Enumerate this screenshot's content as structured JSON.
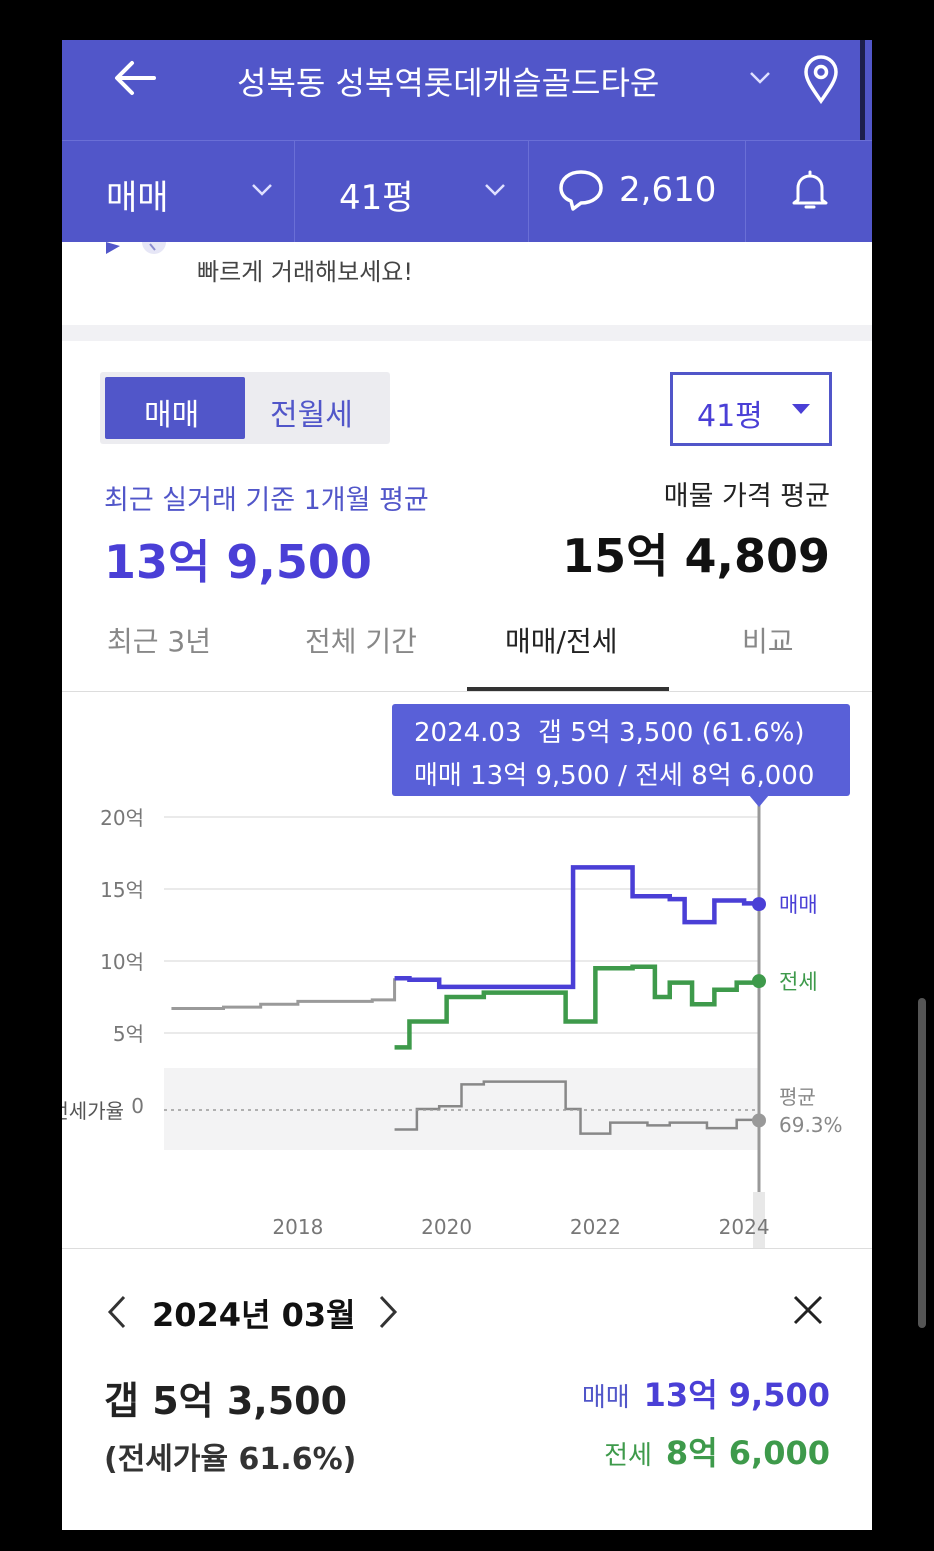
{
  "header": {
    "title": "성복동 성복역롯데캐슬골드타운",
    "trade_type": "매매",
    "area": "41평",
    "comment_count": "2,610"
  },
  "banner": {
    "text": "빠르게 거래해보세요!"
  },
  "toggle": {
    "sale": "매매",
    "lease": "전월세",
    "area": "41평"
  },
  "summary": {
    "recent_label": "최근 실거래 기준 1개월 평균",
    "recent_value": "13억 9,500",
    "listing_label": "매물 가격 평균",
    "listing_value": "15억 4,809"
  },
  "tabs": [
    "최근 3년",
    "전체 기간",
    "매매/전세",
    "비교"
  ],
  "tooltip": {
    "line1": "2024.03  갭 5억 3,500 (61.6%)",
    "line2": "매매 13억 9,500 / 전세 8억 6,000"
  },
  "chart_data": {
    "type": "line",
    "y_ticks": [
      "20억",
      "15억",
      "10억",
      "5억",
      "0"
    ],
    "x_ticks": [
      "2018",
      "2020",
      "2022",
      "2024"
    ],
    "ylim": [
      0,
      20
    ],
    "ratio_label": "전세가율",
    "avg_label": "평균",
    "avg_value": "69.3%",
    "series": [
      {
        "name": "매매",
        "color": "#4a3fd6",
        "x": [
          2016.3,
          2017.0,
          2017.5,
          2018.0,
          2018.5,
          2019.0,
          2019.3,
          2019.5,
          2019.9,
          2020.5,
          2021.0,
          2021.4,
          2021.7,
          2022.2,
          2022.5,
          2023.0,
          2023.2,
          2023.6,
          2024.0,
          2024.2
        ],
        "y": [
          6.7,
          6.8,
          7.0,
          7.2,
          7.2,
          7.3,
          8.8,
          8.7,
          8.2,
          8.2,
          8.2,
          8.2,
          16.5,
          16.5,
          14.5,
          14.3,
          12.7,
          14.2,
          14.0,
          13.95
        ]
      },
      {
        "name": "전세",
        "color": "#3e9a4b",
        "x": [
          2019.3,
          2019.5,
          2020.0,
          2020.5,
          2021.0,
          2021.4,
          2021.6,
          2022.0,
          2022.5,
          2022.8,
          2023.0,
          2023.3,
          2023.6,
          2023.9,
          2024.2
        ],
        "y": [
          4.0,
          5.8,
          7.5,
          7.8,
          7.8,
          7.8,
          5.8,
          9.5,
          9.6,
          7.5,
          8.5,
          7.0,
          8.0,
          8.5,
          8.6
        ]
      }
    ],
    "ratio_series": {
      "x": [
        2019.3,
        2019.6,
        2019.9,
        2020.2,
        2020.5,
        2021.0,
        2021.4,
        2021.6,
        2021.8,
        2022.2,
        2022.7,
        2023.0,
        2023.5,
        2023.9,
        2024.2
      ],
      "y": [
        55,
        70,
        72,
        88,
        90,
        90,
        90,
        70,
        52,
        60,
        58,
        60,
        56,
        62,
        61.6
      ]
    },
    "legend": [
      "매매",
      "전세"
    ]
  },
  "detail": {
    "month": "2024년 03월",
    "gap": "갭 5억 3,500",
    "ratio": "(전세가율 61.6%)",
    "sale_label": "매매",
    "sale_value": "13억 9,500",
    "lease_label": "전세",
    "lease_value": "8억 6,000"
  },
  "colors": {
    "brand": "#5156c9",
    "sale": "#4a3fd6",
    "lease": "#3e9a4b"
  }
}
